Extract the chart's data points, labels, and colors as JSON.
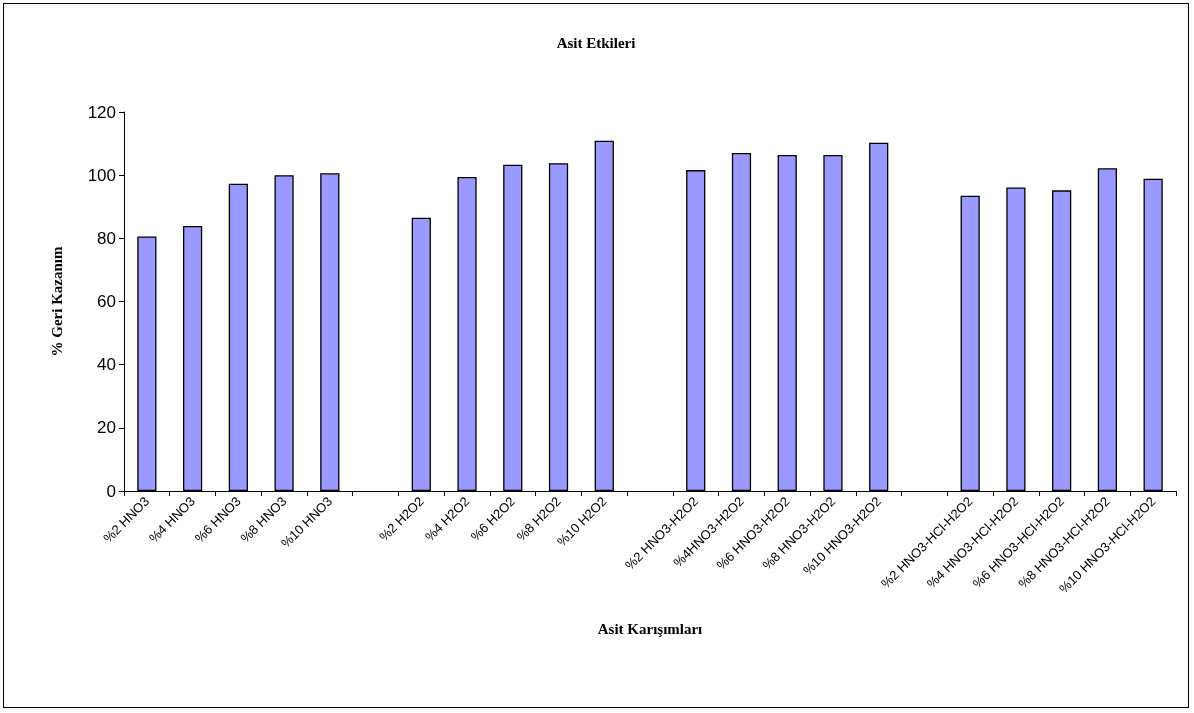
{
  "chart_data": {
    "type": "bar",
    "title": "Asit Etkileri",
    "xlabel": "Asit Karışımları",
    "ylabel": "% Geri Kazanım",
    "categories": [
      "%2 HNO3",
      "%4 HNO3",
      "%6 HNO3",
      "%8 HNO3",
      "%10 HNO3",
      null,
      "%2 H2O2",
      "%4 H2O2",
      "%6 H2O2",
      "%8 H2O2",
      "%10 H2O2",
      null,
      "%2 HNO3-H2O2",
      "%4HNO3-H2O2",
      "%6 HNO3-H2O2",
      "%8 HNO3-H2O2",
      "%10 HNO3-H2O2",
      null,
      "%2 HNO3-HCl-H2O2",
      "%4 HNO3-HCl-H2O2",
      "%6 HNO3-HCl-H2O2",
      "%8 HNO3-HCl-H2O2",
      "%10 HNO3-HCl-H2O2"
    ],
    "values": [
      80.6,
      83.9,
      97.3,
      100.0,
      100.6,
      null,
      86.5,
      99.4,
      103.3,
      103.8,
      110.9,
      null,
      101.6,
      107.0,
      106.4,
      106.4,
      110.3,
      null,
      93.5,
      96.1,
      95.2,
      102.2,
      98.9
    ],
    "color": "#9999ff",
    "ylim": [
      0,
      120
    ],
    "yticks": [
      0,
      20,
      40,
      60,
      80,
      100,
      120
    ],
    "grid": false
  }
}
